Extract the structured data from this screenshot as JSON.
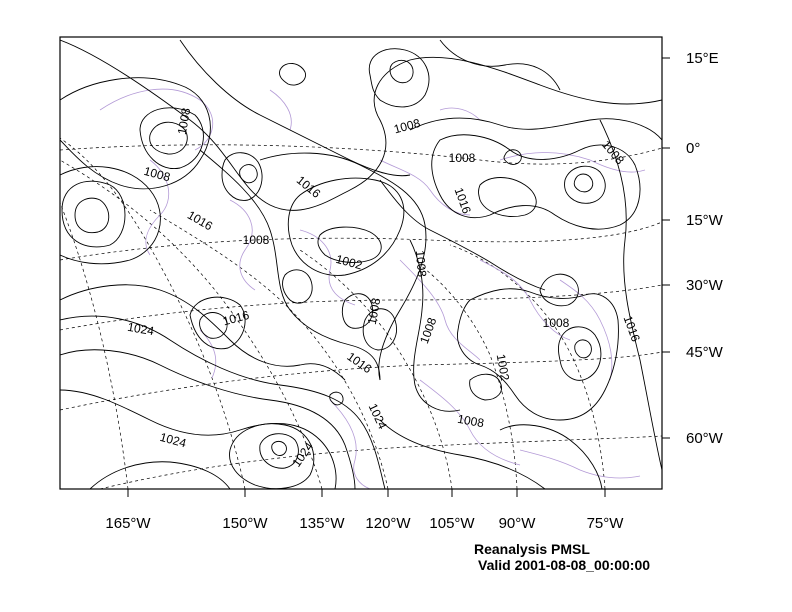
{
  "map": {
    "caption_title": "Reanalysis PMSL",
    "caption_valid": "Valid 2001-08-08_00:00:00",
    "colors": {
      "contour": "#000000",
      "coastline": "#b39ad6",
      "graticule": "#000000",
      "frame": "#000000",
      "background": "#ffffff"
    },
    "bottom_axis_labels": [
      "165°W",
      "150°W",
      "135°W",
      "120°W",
      "105°W",
      "90°W",
      "75°W"
    ],
    "right_axis_labels": [
      "15°E",
      "0°",
      "15°W",
      "30°W",
      "45°W",
      "60°W"
    ],
    "contour_labels": [
      "1008",
      "1008",
      "1008",
      "1008",
      "1016",
      "1008",
      "1016",
      "1002",
      "1008",
      "1016",
      "1008",
      "1016",
      "1016",
      "1008",
      "1024",
      "1008",
      "1008",
      "1016",
      "1002",
      "1024",
      "1024",
      "1024",
      "1008"
    ]
  }
}
